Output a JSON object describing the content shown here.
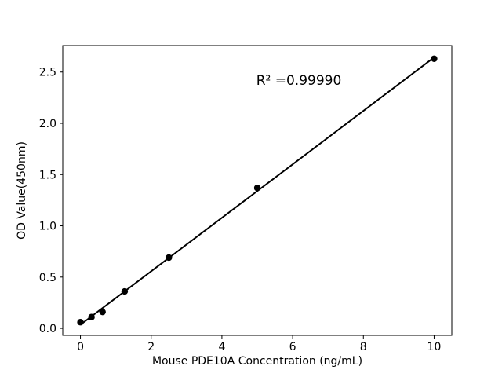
{
  "chart_data": {
    "type": "scatter",
    "title": "",
    "xlabel": "Mouse PDE10A Concentration (ng/mL)",
    "ylabel": "OD Value(450nm)",
    "annotation": "R² =0.99990",
    "x": [
      0,
      0.3125,
      0.625,
      1.25,
      2.5,
      5,
      10
    ],
    "y": [
      0.06,
      0.11,
      0.16,
      0.36,
      0.69,
      1.37,
      2.63
    ],
    "fit": "linear",
    "xlim": [
      -0.5,
      10.5
    ],
    "ylim": [
      -0.0685,
      2.7585
    ],
    "xticks": [
      0,
      2,
      4,
      6,
      8,
      10
    ],
    "xtick_labels": [
      "0",
      "2",
      "4",
      "6",
      "8",
      "10"
    ],
    "yticks": [
      0,
      0.5,
      1.0,
      1.5,
      2.0,
      2.5
    ],
    "ytick_labels": [
      "0.0",
      "0.5",
      "1.0",
      "1.5",
      "2.0",
      "2.5"
    ],
    "grid": false,
    "legend": null,
    "marker_color": "#000000",
    "line_color": "#000000",
    "axis_color": "#000000",
    "background_color": "#ffffff"
  }
}
